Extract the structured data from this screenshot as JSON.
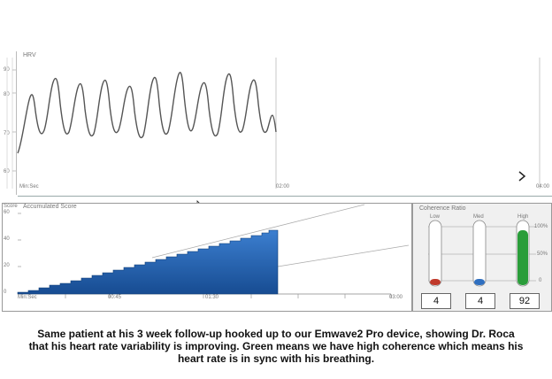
{
  "hrv": {
    "title": "HRV",
    "y_ticks": [
      "90",
      "80",
      "70",
      "60"
    ],
    "x_axis_label": "Min:Sec",
    "x_ticks": [
      "02:00",
      "04:00"
    ],
    "next_icon": "chevron-right-icon"
  },
  "score": {
    "title": "Accumulated Score",
    "y_axis_label": "Score",
    "y_ticks": [
      "60",
      "40",
      "20",
      "0"
    ],
    "x_axis_label": "Min:Sec",
    "x_ticks": [
      "00:45",
      "01:30",
      "03:00"
    ],
    "fill_color": "#1f5aa6"
  },
  "coherence": {
    "title": "Coherence Ratio",
    "columns": [
      {
        "label": "Low",
        "value": "4",
        "color": "#c0392b"
      },
      {
        "label": "Med",
        "value": "4",
        "color": "#2f6fc0"
      },
      {
        "label": "High",
        "value": "92",
        "color": "#2a9d3a"
      }
    ],
    "scale_labels": [
      "100%",
      "50%",
      "0"
    ]
  },
  "caption": "Same patient at his 3 week follow-up hooked up to our Emwave2 Pro device, showing Dr. Roca that his heart rate variability is improving. Green means we have high coherence which means his heart rate is in sync with his breathing."
}
